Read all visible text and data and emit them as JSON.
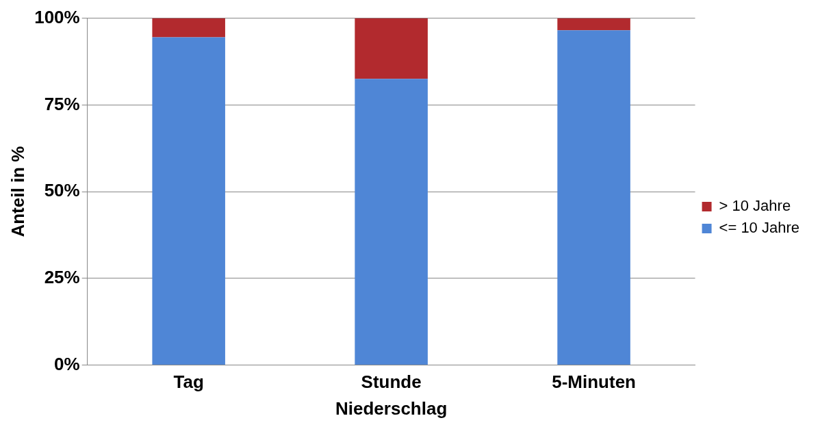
{
  "chart_data": {
    "type": "bar",
    "stacked": true,
    "xlabel": "Niederschlag",
    "ylabel": "Anteil in %",
    "categories": [
      "Tag",
      "Stunde",
      "5-Minuten"
    ],
    "series": [
      {
        "name": "<= 10 Jahre",
        "color": "#4f86d6",
        "values": [
          94.5,
          82.5,
          96.5
        ]
      },
      {
        "name": "> 10 Jahre",
        "color": "#b22a2e",
        "values": [
          5.5,
          17.5,
          3.5
        ]
      }
    ],
    "ylim": [
      0,
      100
    ],
    "yticks": [
      {
        "value": 0,
        "label": "0%"
      },
      {
        "value": 25,
        "label": "25%"
      },
      {
        "value": 50,
        "label": "50%"
      },
      {
        "value": 75,
        "label": "75%"
      },
      {
        "value": 100,
        "label": "100%"
      }
    ],
    "grid": "y",
    "legend": "right"
  }
}
